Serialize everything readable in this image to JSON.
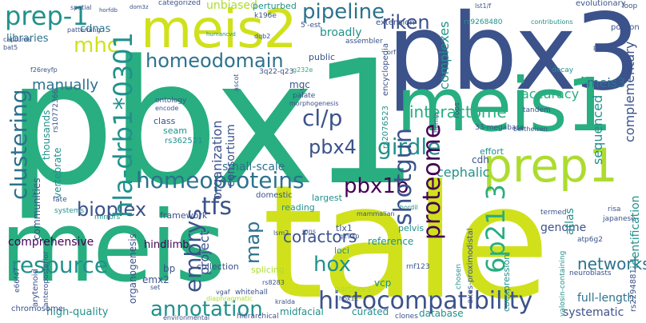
{
  "palette": {
    "dark_purple": "#440154",
    "indigo": "#3b528b",
    "blue": "#2c728e",
    "teal": "#21918c",
    "green": "#28ae80",
    "light_green": "#5ec962",
    "yellow_green": "#addc30",
    "yellow": "#d0e11c"
  },
  "words": {
    "tale": "tale",
    "pbx1": "pbx1",
    "pbx3": "pbx3",
    "meis": "meis",
    "meis1": "meis1",
    "meis2": "meis2",
    "prep1": "prep1",
    "prep1_small": "prep-1",
    "homeodomain": "homeodomain",
    "pipeline": "pipeline",
    "riken": "riken",
    "hla": "hla-drb1*0301",
    "clustering": "clustering",
    "homeoproteins": "homeoproteins",
    "histocompatibility": "histocompatibility",
    "annotation": "annotation",
    "resource": "resource",
    "proteome": "proteome",
    "shotgun": "shotgun",
    "hox": "hox",
    "pbx1b": "pbx1b",
    "pbx4": "pbx4",
    "girdle": "girdle",
    "cl_p": "cl/p",
    "interactome": "interactome",
    "bioplex": "bioplex",
    "tfs": "tfs",
    "embrys": "embrys",
    "cofactors": "cofactors",
    "chr6p213": "6p21 3",
    "networks": "networks",
    "mhc": "mhc",
    "manually": "manually",
    "unbiased": "unbiased",
    "accuracy": "accuracy",
    "meis3": "meis3",
    "map": "map",
    "small_scale": "small-scale",
    "cephalic": "cephalic",
    "genome": "genome",
    "broadly": "broadly",
    "libraries": "libraries",
    "cdnas": "cdnas",
    "comprehensive": "comprehensive",
    "hindlimb": "hindlimb",
    "full_length": "full-length",
    "systematic": "systematic",
    "high_quality": "high-quality",
    "curated": "curated",
    "database": "database",
    "complexes": "complexes",
    "portion": "portion",
    "complementary": "complementary",
    "sequenced": "sequenced",
    "identification": "identification",
    "atlas": "atlas",
    "extension": "extension",
    "framework": "framework",
    "organization": "organization",
    "consortium": "consortium",
    "project": "project",
    "collection": "collection",
    "splicing": "splicing",
    "partners": "partners",
    "reading": "reading",
    "largest": "largest",
    "reference": "reference",
    "loci": "loci",
    "tlx1": "tlx1",
    "vcp": "vcp",
    "emx2": "emx2",
    "bp": "bp",
    "organogenesis": "organogenesis",
    "chromosome": "chromosome",
    "communities": "communities",
    "thousands": "thousands",
    "vertebrate": "vertebrate",
    "class": "class",
    "seam": "seam",
    "mgc": "mgc",
    "public": "public",
    "cdh": "cdh",
    "pelvis": "pelvis",
    "effort": "effort",
    "midfacial": "midfacial",
    "arytenoid": "arytenoid",
    "evolutionary": "evolutionary",
    "perturbed": "perturbed",
    "categorized": "categorized",
    "assembler": "assembler",
    "rs362521": "rs362521",
    "rs2076523": "rs2076523",
    "rs9268480": "rs9268480",
    "rs2294881": "rs2294881",
    "encyclopedia": "encyclopedia",
    "tandem": "tandem",
    "coexpression": "coexpression",
    "axes_proximodistal": "axes-proximodistal",
    "environmental": "environmental",
    "hierarchical": "hierarchical",
    "clones": "clones",
    "neuroblasts": "neuroblasts",
    "rnf123": "rnf123",
    "domestic": "domestic",
    "japanese": "japanese",
    "termed": "termed",
    "risa": "risa",
    "ontology": "ontology",
    "encode": "encode",
    "fate": "fate",
    "systems": "systems",
    "patterning": "patterning",
    "captures": "captures",
    "spatial": "spatial",
    "k196e": "k196e",
    "dqb2": "dqb2",
    "q22_q23": "3q22-q23",
    "five_utr": "5'-est",
    "lst1_f": "lst1/f",
    "contributions": "contributions",
    "decay": "decay",
    "loop": "loop",
    "rs10772366": "rs10772366",
    "rs8283": "rs8283",
    "rs2294881b": "rs2294881",
    "valosin": "valosin-containing",
    "atp6g2": "atp6g2",
    "mirrors": "mirrors",
    "bertheisen": "bertheisen",
    "megabase": "33-megabase",
    "hernia": "hernia",
    "rbps": "rbps",
    "palate": "palate",
    "morphogenesis": "morphogenesis",
    "g232e": "g232e",
    "humancvd": "humancvd",
    "dom3z": "dom3z",
    "horfdb": "horfdb",
    "bat5": "bat5",
    "f26reyfp": "f26reyfp",
    "anteroposterior": "anteroposterior",
    "diaphragmatic": "diaphragmatic",
    "whitehall": "whitehall",
    "hox11": "hox11",
    "q294p": "q294p",
    "mns": "mns",
    "lsm2": "lsm2",
    "mammalian": "mammalian",
    "chosen": "chosen",
    "hordil": "hordil",
    "set": "set",
    "vgaf": "vgaf",
    "ascot": "ascot",
    "orf": "orf",
    "pbc": "pbc",
    "kralda": "kralda",
    "e66f47": "e66f47"
  }
}
